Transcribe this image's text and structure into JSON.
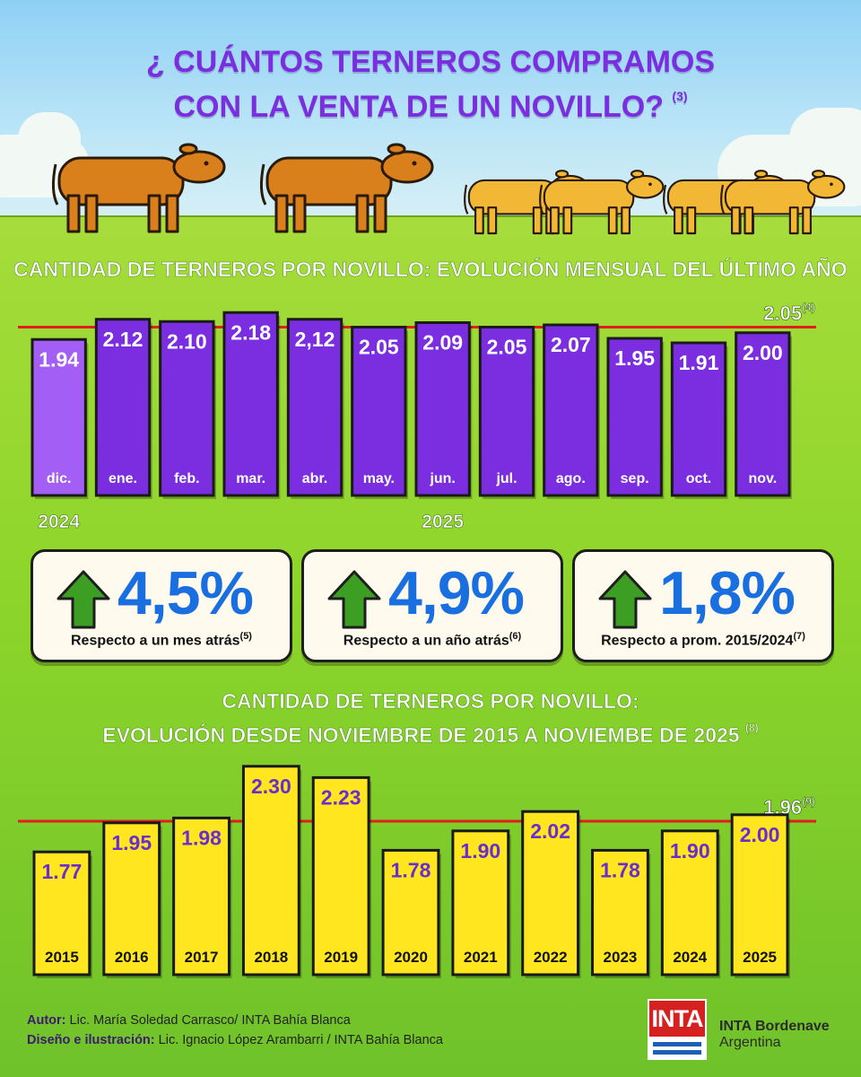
{
  "title": {
    "line1": "¿ CUÁNTOS TERNEROS COMPRAMOS",
    "line2": "CON LA VENTA DE UN NOVILLO?",
    "note": "(3)"
  },
  "colors": {
    "monthly_bar": "#7a2ee0",
    "monthly_bar_first": "#a35ef5",
    "yearly_bar": "#ffe61e",
    "reference_line": "#e01e1e",
    "percent_text": "#1a6fe0",
    "arrow": "#3c9e22"
  },
  "section1": {
    "title": "CANTIDAD DE TERNEROS POR NOVILLO: EVOLUCIÓN MENSUAL DEL ÚLTIMO AÑO"
  },
  "section2": {
    "title_line1": "CANTIDAD DE TERNEROS POR NOVILLO:",
    "title_line2": "EVOLUCIÓN DESDE NOVIEMBRE DE 2015 A NOVIEMBE DE 2025",
    "note": "(8)"
  },
  "chart_data": [
    {
      "type": "bar",
      "categories": [
        "dic.",
        "ene.",
        "feb.",
        "mar.",
        "abr.",
        "may.",
        "jun.",
        "jul.",
        "ago.",
        "sep.",
        "oct.",
        "nov."
      ],
      "values": [
        1.94,
        2.12,
        2.1,
        2.18,
        2.12,
        2.05,
        2.09,
        2.05,
        2.07,
        1.95,
        1.91,
        2.0
      ],
      "value_labels": [
        "1.94",
        "2.12",
        "2.10",
        "2.18",
        "2,12",
        "2.05",
        "2.09",
        "2.05",
        "2.07",
        "1.95",
        "1.91",
        "2.00"
      ],
      "year_labels": [
        {
          "text": "2024",
          "at": 0
        },
        {
          "text": "2025",
          "at": 6
        }
      ],
      "reference_line": {
        "value": 2.05,
        "label": "2.05",
        "note": "(4)"
      }
    },
    {
      "type": "bar",
      "categories": [
        "2015",
        "2016",
        "2017",
        "2018",
        "2019",
        "2020",
        "2021",
        "2022",
        "2023",
        "2024",
        "2025"
      ],
      "values": [
        1.77,
        1.95,
        1.98,
        2.3,
        2.23,
        1.78,
        1.9,
        2.02,
        1.78,
        1.9,
        2.0
      ],
      "value_labels": [
        "1.77",
        "1.95",
        "1.98",
        "2.30",
        "2.23",
        "1.78",
        "1.90",
        "2.02",
        "1.78",
        "1.90",
        "2.00"
      ],
      "reference_line": {
        "value": 1.96,
        "label": "1.96",
        "note": "(9)"
      }
    }
  ],
  "cards": [
    {
      "value": "4,5%",
      "label": "Respecto a un mes atrás",
      "note": "(5)",
      "icon": "up-arrow-icon"
    },
    {
      "value": "4,9%",
      "label": "Respecto a un año atrás",
      "note": "(6)",
      "icon": "up-arrow-icon"
    },
    {
      "value": "1,8%",
      "label": "Respecto a prom. 2015/2024",
      "note": "(7)",
      "icon": "up-arrow-icon"
    }
  ],
  "footer": {
    "author_label": "Autor:",
    "author": "Lic. María Soledad Carrasco/ INTA Bahía Blanca",
    "design_label": "Diseño e ilustración:",
    "design": "Lic. Ignacio López Arambarri / INTA Bahía Blanca"
  },
  "logo": {
    "mark": "INTA",
    "name": "INTA Bordenave",
    "country": "Argentina"
  }
}
